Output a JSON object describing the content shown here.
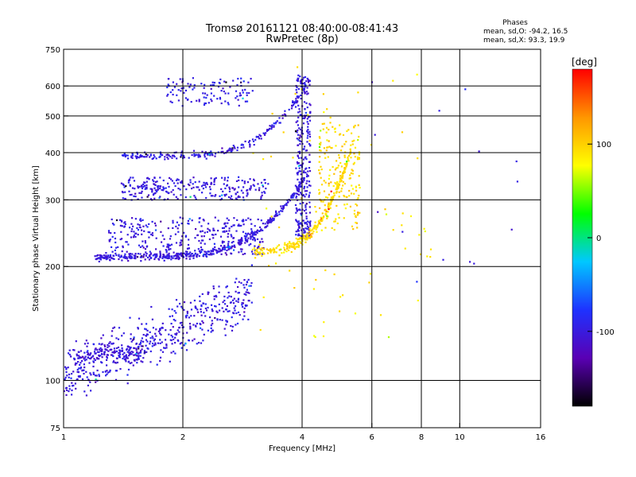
{
  "chart_data": {
    "type": "scatter",
    "title": "Tromsø 20161121 08:40:00-08:41:43",
    "subtitle": "RwPretec (8p)",
    "xlabel": "Frequency [MHz]",
    "ylabel": "Stationary phase Virtual Height [km]",
    "x_scale": "log",
    "y_scale": "log",
    "xlim": [
      1,
      16
    ],
    "ylim": [
      75,
      750
    ],
    "x_ticks": [
      1,
      2,
      4,
      6,
      8,
      10,
      16
    ],
    "y_ticks": [
      75,
      100,
      200,
      300,
      400,
      500,
      600,
      750
    ],
    "x_gridlines": [
      2,
      4,
      6,
      8,
      10
    ],
    "y_gridlines": [
      100,
      200,
      300,
      400,
      500,
      600
    ],
    "stats": {
      "heading": "Phases",
      "line_o": "mean, sd,O: -94.2, 16.5",
      "line_x": "mean, sd,X:  93.3, 19.9"
    },
    "colorbar": {
      "label": "[deg]",
      "range": [
        -180,
        180
      ],
      "ticks": [
        100,
        0,
        -100
      ],
      "stops": [
        "#000000",
        "#5a00b4",
        "#1e32ff",
        "#00c8ff",
        "#00ff00",
        "#ffff00",
        "#ff9600",
        "#ff0000"
      ]
    },
    "series": [
      {
        "trace": "low-scatter",
        "phase": -100,
        "x_range": [
          1.0,
          3.0
        ],
        "y_range": [
          95,
          185
        ]
      },
      {
        "trace": "e-layer",
        "phase": -105,
        "x_range": [
          1.05,
          1.6
        ],
        "y_range": [
          108,
          128
        ]
      },
      {
        "trace": "o-trace-1",
        "phase": -100,
        "x_range": [
          1.2,
          4.05
        ],
        "y_range": [
          210,
          650
        ]
      },
      {
        "trace": "o-trace-cloud",
        "phase": -100,
        "x_range": [
          1.3,
          3.2
        ],
        "y_range": [
          215,
          270
        ]
      },
      {
        "trace": "o-trace-2",
        "phase": -100,
        "x_range": [
          1.4,
          3.3
        ],
        "y_range": [
          295,
          350
        ]
      },
      {
        "trace": "o-trace-3",
        "phase": -100,
        "x_range": [
          1.4,
          4.2
        ],
        "y_range": [
          385,
          500
        ]
      },
      {
        "trace": "o-trace-4",
        "phase": -95,
        "x_range": [
          1.8,
          3.0
        ],
        "y_range": [
          520,
          650
        ]
      },
      {
        "trace": "o-cusp",
        "phase": -100,
        "x_range": [
          3.8,
          4.3
        ],
        "y_range": [
          240,
          650
        ]
      },
      {
        "trace": "x-trace-1",
        "phase": 95,
        "x_range": [
          3.0,
          5.3
        ],
        "y_range": [
          220,
          400
        ]
      },
      {
        "trace": "x-trace-2",
        "phase": 95,
        "x_range": [
          4.4,
          5.6
        ],
        "y_range": [
          250,
          480
        ]
      },
      {
        "trace": "x-sparse",
        "phase": 90,
        "x_range": [
          3.0,
          8.5
        ],
        "y_range": [
          130,
          680
        ]
      },
      {
        "trace": "isolated",
        "phase": -100,
        "x_range": [
          6.0,
          14.0
        ],
        "y_range": [
          170,
          620
        ]
      }
    ]
  }
}
